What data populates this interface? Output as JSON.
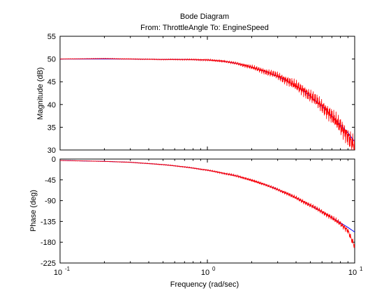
{
  "figure": {
    "title": "Bode Diagram",
    "subtitle": "From: ThrottleAngle  To: EngineSpeed"
  },
  "chart_data": [
    {
      "type": "line",
      "name": "magnitude",
      "ylabel": "Magnitude (dB)",
      "xlabel": "",
      "xscale": "log",
      "xlim": [
        0.1,
        10
      ],
      "ylim": [
        30,
        55
      ],
      "yticks": [
        30,
        35,
        40,
        45,
        50,
        55
      ],
      "grid": false,
      "series": [
        {
          "color": "#0000ff",
          "x": [
            0.1,
            0.2,
            0.3,
            0.5,
            0.7,
            1.0,
            1.3,
            1.6,
            2.0,
            2.5,
            3.0,
            3.5,
            4.0,
            4.5,
            5.0,
            6.0,
            7.0,
            8.0,
            9.0,
            10.0
          ],
          "y": [
            50.0,
            50.0,
            50.0,
            49.9,
            49.9,
            49.8,
            49.5,
            49.0,
            48.2,
            47.2,
            46.2,
            45.1,
            44.0,
            43.0,
            41.8,
            39.6,
            37.5,
            35.5,
            33.8,
            31.8
          ]
        },
        {
          "color": "#ff0000",
          "x": [
            0.1,
            0.2,
            0.3,
            0.5,
            0.7,
            1.0,
            1.3,
            1.6,
            2.0,
            2.5,
            3.0,
            3.5,
            4.0,
            4.5,
            5.0,
            6.0,
            7.0,
            8.0,
            9.0,
            10.0
          ],
          "y": [
            50.0,
            50.1,
            50.0,
            49.9,
            49.9,
            49.8,
            49.5,
            49.0,
            48.2,
            47.2,
            46.3,
            45.2,
            44.1,
            43.1,
            41.9,
            39.7,
            37.4,
            35.2,
            33.0,
            30.8
          ],
          "noise": [
            0.05,
            0.08,
            0.1,
            0.12,
            0.15,
            0.2,
            0.3,
            0.4,
            0.6,
            0.8,
            1.0,
            1.2,
            1.4,
            1.5,
            1.6,
            1.8,
            2.0,
            2.2,
            2.3,
            2.4
          ]
        }
      ]
    },
    {
      "type": "line",
      "name": "phase",
      "ylabel": "Phase (deg)",
      "xlabel": "Frequency  (rad/sec)",
      "xscale": "log",
      "xlim": [
        0.1,
        10
      ],
      "xticks": [
        {
          "value": 0.1,
          "base": "10",
          "exp": "-1"
        },
        {
          "value": 1,
          "base": "10",
          "exp": "0"
        },
        {
          "value": 10,
          "base": "10",
          "exp": "1"
        }
      ],
      "ylim": [
        -225,
        0
      ],
      "yticks": [
        0,
        -45,
        -90,
        -135,
        -180,
        -225
      ],
      "grid": false,
      "series": [
        {
          "color": "#0000ff",
          "x": [
            0.1,
            0.2,
            0.3,
            0.5,
            0.7,
            1.0,
            1.3,
            1.6,
            2.0,
            2.5,
            3.0,
            3.5,
            4.0,
            5.0,
            6.0,
            7.0,
            8.0,
            9.0,
            10.0
          ],
          "y": [
            -3,
            -5,
            -7,
            -12,
            -17,
            -24,
            -31,
            -37,
            -46,
            -56,
            -66,
            -75,
            -84,
            -100,
            -114,
            -127,
            -138,
            -148,
            -158
          ]
        },
        {
          "color": "#ff0000",
          "x": [
            0.1,
            0.2,
            0.3,
            0.5,
            0.7,
            1.0,
            1.3,
            1.6,
            2.0,
            2.5,
            3.0,
            3.5,
            4.0,
            5.0,
            6.0,
            7.0,
            8.0,
            9.0,
            10.0
          ],
          "y": [
            -3,
            -5,
            -7,
            -12,
            -17,
            -24,
            -31,
            -37,
            -46,
            -56,
            -66,
            -75,
            -84,
            -100,
            -114,
            -127,
            -140,
            -155,
            -190
          ],
          "noise": [
            0.5,
            0.6,
            0.8,
            1,
            1.2,
            1.5,
            2,
            2.5,
            3,
            3.5,
            4,
            4.5,
            5,
            5.5,
            6,
            6.5,
            7,
            7.5,
            8
          ]
        }
      ]
    }
  ]
}
